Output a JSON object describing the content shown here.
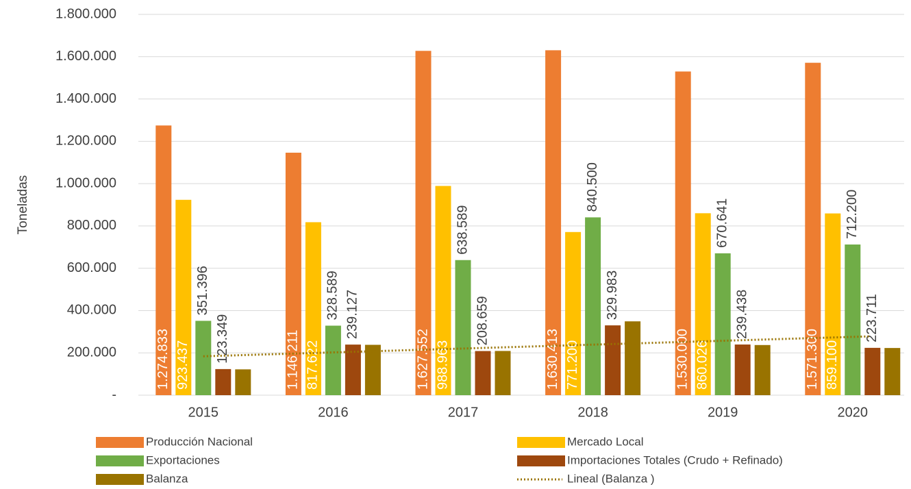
{
  "chart_data": {
    "type": "bar",
    "y_label": "Toneladas",
    "categories": [
      "2015",
      "2016",
      "2017",
      "2018",
      "2019",
      "2020"
    ],
    "ylim": [
      0,
      1800000
    ],
    "yticks": [
      {
        "value": 0,
        "label": "-"
      },
      {
        "value": 200000,
        "label": "200.000"
      },
      {
        "value": 400000,
        "label": "400.000"
      },
      {
        "value": 600000,
        "label": "600.000"
      },
      {
        "value": 800000,
        "label": "800.000"
      },
      {
        "value": 1000000,
        "label": "1.000.000"
      },
      {
        "value": 1200000,
        "label": "1.200.000"
      },
      {
        "value": 1400000,
        "label": "1.400.000"
      },
      {
        "value": 1600000,
        "label": "1.600.000"
      },
      {
        "value": 1800000,
        "label": "1.800.000"
      }
    ],
    "grid": true,
    "legend": "bottom",
    "series": [
      {
        "name": "Producción Nacional",
        "color": "#ED7D31",
        "label_position": "inside",
        "values": [
          1274833,
          1146211,
          1627552,
          1630413,
          1530000,
          1571300
        ],
        "value_labels": [
          "1.274.833",
          "1.146.211",
          "1.627.552",
          "1.630.413",
          "1.530.000",
          "1.571.300"
        ]
      },
      {
        "name": "Mercado Local",
        "color": "#FFC000",
        "label_position": "inside",
        "values": [
          923437,
          817622,
          988963,
          771200,
          860026,
          859100
        ],
        "value_labels": [
          "923.437",
          "817.622",
          "988.963",
          "771.200",
          "860.026",
          "859.100"
        ]
      },
      {
        "name": "Exportaciones",
        "color": "#70AD47",
        "label_position": "outside",
        "values": [
          351396,
          328589,
          638589,
          840500,
          670641,
          712200
        ],
        "value_labels": [
          "351.396",
          "328.589",
          "638.589",
          "840.500",
          "670.641",
          "712.200"
        ]
      },
      {
        "name": "Importaciones Totales (Crudo + Refinado)",
        "color": "#9E480E",
        "label_position": "outside",
        "values": [
          123349,
          239127,
          208659,
          329983,
          239438,
          223711
        ],
        "value_labels": [
          "123.349",
          "239.127",
          "208.659",
          "329.983",
          "239.438",
          "223.711"
        ]
      },
      {
        "name": "Balanza",
        "color": "#997300",
        "values": [
          122000,
          238000,
          209000,
          349000,
          237000,
          223000
        ],
        "trendline": {
          "name": "Lineal (Balanza )",
          "color": "#997300",
          "style": "dotted"
        }
      }
    ]
  }
}
